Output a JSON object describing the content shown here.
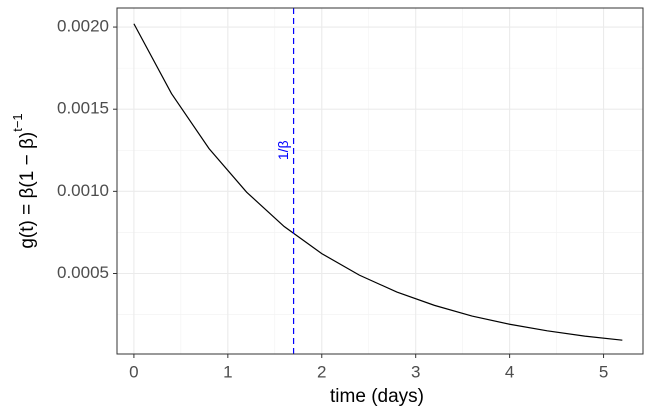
{
  "chart_data": {
    "type": "line",
    "xlabel": "time (days)",
    "ylabel": "g(t) = β(1 − β)",
    "ylabel_superscript": "t−1",
    "x": [
      0,
      0.4,
      0.8,
      1.2,
      1.6,
      2.0,
      2.4,
      2.8,
      3.2,
      3.6,
      4.0,
      4.4,
      4.8,
      5.2
    ],
    "series": [
      {
        "color": "#000000",
        "values": [
          0.00202,
          0.001595,
          0.00126,
          0.000995,
          0.000786,
          0.000621,
          0.00049,
          0.000387,
          0.000306,
          0.000241,
          0.000191,
          0.000151,
          0.000119,
          9.4e-05
        ]
      }
    ],
    "vline": {
      "x": 1.7,
      "color": "#0000ff",
      "label": "1/β",
      "label_x": 1.6,
      "label_y": 0.00125
    },
    "xlim": [
      -0.18,
      5.42
    ],
    "xticks": [
      0,
      1,
      2,
      3,
      4,
      5
    ],
    "ylim": [
      1e-05,
      0.002116
    ],
    "yticks": [
      {
        "value": 0.0005,
        "label": "0.0005"
      },
      {
        "value": 0.001,
        "label": "0.0010"
      },
      {
        "value": 0.0015,
        "label": "0.0015"
      },
      {
        "value": 0.002,
        "label": "0.0020"
      }
    ],
    "x_minor_grid": [
      0.5,
      1.5,
      2.5,
      3.5,
      4.5
    ],
    "y_minor_grid": [
      0.00025,
      0.00075,
      0.00125,
      0.00175
    ],
    "grid": true
  }
}
